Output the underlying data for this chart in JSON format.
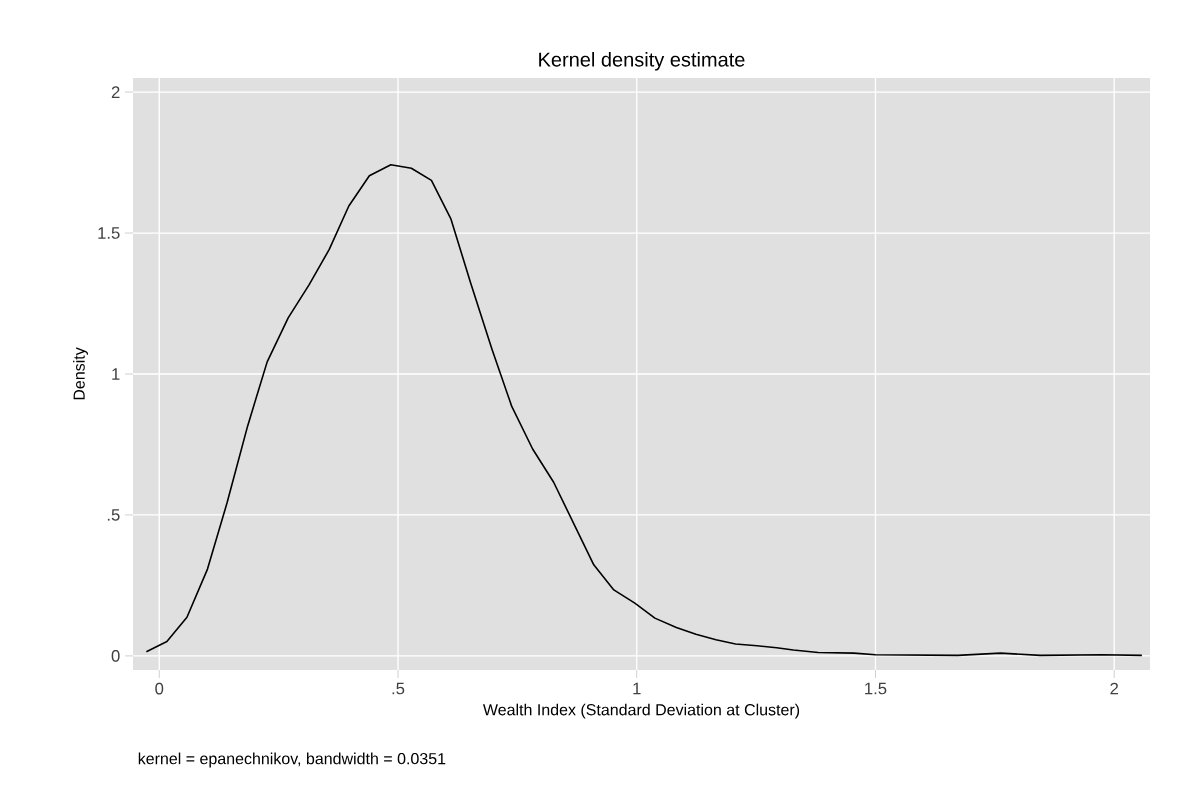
{
  "chart_data": {
    "type": "line",
    "title": "Kernel density estimate",
    "xlabel": "Wealth Index (Standard Deviation at Cluster)",
    "ylabel": "Density",
    "annotations": [
      "kernel = epanechnikov, bandwidth = 0.0351"
    ],
    "xlim": [
      -0.055,
      2.075
    ],
    "ylim": [
      -0.05,
      2.05
    ],
    "xticks": [
      0,
      {
        "value": 0.5,
        "label": ".5"
      },
      1,
      1.5,
      2
    ],
    "yticks": [
      0,
      {
        "value": 0.5,
        "label": ".5"
      },
      1,
      1.5,
      2
    ],
    "grid": true,
    "marker": "none",
    "line_style": "solid",
    "x": [
      -0.027,
      0.016,
      0.058,
      0.101,
      0.142,
      0.185,
      0.226,
      0.27,
      0.314,
      0.356,
      0.397,
      0.44,
      0.485,
      0.528,
      0.57,
      0.611,
      0.652,
      0.697,
      0.738,
      0.782,
      0.826,
      0.91,
      0.952,
      0.996,
      1.038,
      1.083,
      1.124,
      1.166,
      1.207,
      1.252,
      1.293,
      1.328,
      1.38,
      1.455,
      1.5,
      1.672,
      1.762,
      1.845,
      1.975,
      2.058
    ],
    "series": [
      {
        "color": "#000000",
        "values": [
          0.015,
          0.051,
          0.137,
          0.308,
          0.543,
          0.815,
          1.043,
          1.199,
          1.317,
          1.442,
          1.596,
          1.703,
          1.742,
          1.73,
          1.687,
          1.549,
          1.324,
          1.087,
          0.886,
          0.734,
          0.616,
          0.323,
          0.234,
          0.187,
          0.134,
          0.101,
          0.077,
          0.057,
          0.042,
          0.036,
          0.029,
          0.021,
          0.012,
          0.01,
          0.004,
          0.002,
          0.01,
          0.002,
          0.004,
          0.002
        ]
      }
    ]
  }
}
